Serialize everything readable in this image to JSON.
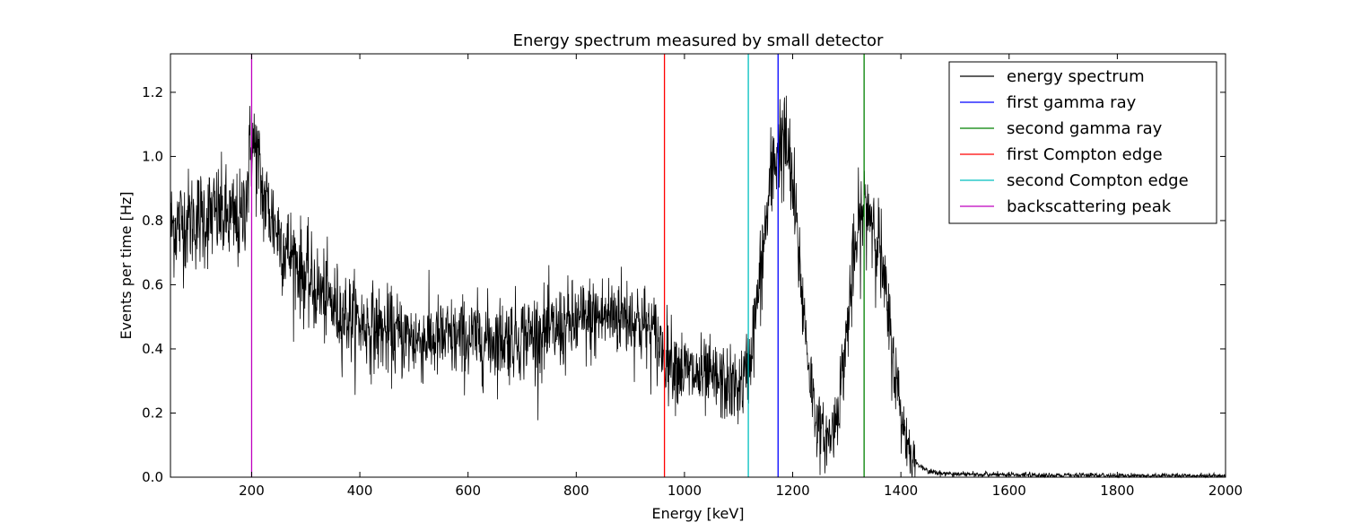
{
  "chart_data": {
    "type": "line",
    "title": "Energy spectrum measured by small detector",
    "xlabel": "Energy [keV]",
    "ylabel": "Events per time [Hz]",
    "xlim": [
      50,
      2000
    ],
    "ylim": [
      0.0,
      1.32
    ],
    "xticks": [
      200,
      400,
      600,
      800,
      1000,
      1200,
      1400,
      1600,
      1800,
      2000
    ],
    "yticks": [
      0.0,
      0.2,
      0.4,
      0.6,
      0.8,
      1.0,
      1.2
    ],
    "grid": false,
    "legend_position": "top-right",
    "spectrum": {
      "name": "energy spectrum",
      "color": "#000000",
      "x": [
        50,
        80,
        110,
        140,
        160,
        180,
        190,
        200,
        210,
        220,
        240,
        260,
        280,
        300,
        330,
        360,
        400,
        450,
        500,
        550,
        600,
        650,
        700,
        750,
        800,
        850,
        880,
        900,
        920,
        940,
        960,
        980,
        1000,
        1030,
        1060,
        1090,
        1100,
        1110,
        1120,
        1130,
        1140,
        1150,
        1160,
        1170,
        1180,
        1190,
        1200,
        1210,
        1220,
        1230,
        1240,
        1250,
        1260,
        1270,
        1280,
        1290,
        1300,
        1310,
        1320,
        1330,
        1340,
        1350,
        1360,
        1370,
        1380,
        1390,
        1400,
        1410,
        1420,
        1430,
        1440,
        1450,
        1470,
        1500,
        1550,
        1600,
        1700,
        1800,
        1900,
        2000
      ],
      "y": [
        0.78,
        0.8,
        0.81,
        0.82,
        0.8,
        0.79,
        0.88,
        1.05,
        1.0,
        0.88,
        0.8,
        0.72,
        0.68,
        0.62,
        0.57,
        0.52,
        0.48,
        0.45,
        0.43,
        0.43,
        0.43,
        0.43,
        0.44,
        0.45,
        0.48,
        0.5,
        0.51,
        0.5,
        0.48,
        0.45,
        0.4,
        0.36,
        0.33,
        0.31,
        0.3,
        0.28,
        0.28,
        0.3,
        0.36,
        0.48,
        0.62,
        0.78,
        0.92,
        1.02,
        1.05,
        1.02,
        0.9,
        0.72,
        0.52,
        0.35,
        0.22,
        0.14,
        0.12,
        0.13,
        0.18,
        0.3,
        0.45,
        0.62,
        0.75,
        0.83,
        0.84,
        0.8,
        0.72,
        0.58,
        0.45,
        0.32,
        0.2,
        0.12,
        0.07,
        0.04,
        0.03,
        0.02,
        0.012,
        0.01,
        0.008,
        0.007,
        0.006,
        0.005,
        0.005,
        0.004
      ]
    },
    "vertical_lines": [
      {
        "name": "first gamma ray",
        "x": 1173,
        "color": "#0000ff"
      },
      {
        "name": "second gamma ray",
        "x": 1332,
        "color": "#008000"
      },
      {
        "name": "first Compton edge",
        "x": 963,
        "color": "#ff0000"
      },
      {
        "name": "second Compton edge",
        "x": 1118,
        "color": "#00bfbf"
      },
      {
        "name": "backscattering peak",
        "x": 200,
        "color": "#bf00bf"
      }
    ],
    "legend": [
      {
        "label": "energy spectrum",
        "color": "#000000"
      },
      {
        "label": "first gamma ray",
        "color": "#0000ff"
      },
      {
        "label": "second gamma ray",
        "color": "#008000"
      },
      {
        "label": "first Compton edge",
        "color": "#ff0000"
      },
      {
        "label": "second Compton edge",
        "color": "#00bfbf"
      },
      {
        "label": "backscattering peak",
        "color": "#bf00bf"
      }
    ]
  }
}
